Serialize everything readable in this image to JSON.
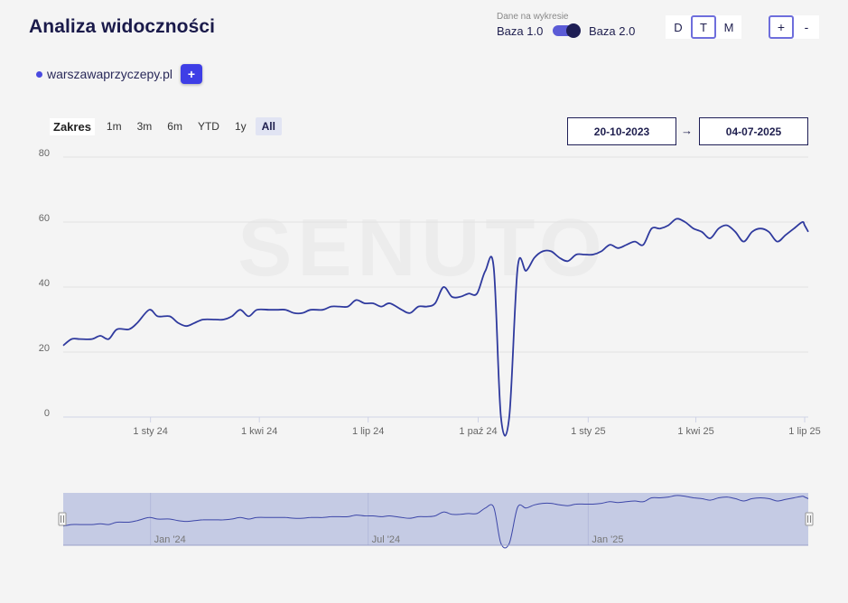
{
  "header": {
    "title": "Analiza widoczności",
    "data_caption": "Dane na wykresie",
    "base_left": "Baza 1.0",
    "base_right": "Baza 2.0",
    "base_selected": "Baza 2.0",
    "periods": [
      "D",
      "T",
      "M"
    ],
    "period_selected": "T",
    "zoom_in": "+",
    "zoom_out": "-"
  },
  "domains": {
    "items": [
      {
        "name": "warszawaprzyczepy.pl",
        "color": "#4a4ae0"
      }
    ],
    "add_label": "+"
  },
  "range": {
    "label": "Zakres",
    "buttons": [
      "1m",
      "3m",
      "6m",
      "YTD",
      "1y",
      "All"
    ],
    "selected": "All",
    "from": "20-10-2023",
    "arrow": "→",
    "to": "04-07-2025"
  },
  "watermark": "SENUTO",
  "chart_data": {
    "type": "line",
    "y_ticks": [
      "80",
      "60",
      "40",
      "20",
      "0"
    ],
    "ylim": [
      0,
      80
    ],
    "x_ticks": [
      {
        "label": "1 sty 24",
        "date": "2024-01-01"
      },
      {
        "label": "1 kwi 24",
        "date": "2024-04-01"
      },
      {
        "label": "1 lip 24",
        "date": "2024-07-01"
      },
      {
        "label": "1 paź 24",
        "date": "2024-10-01"
      },
      {
        "label": "1 sty 25",
        "date": "2025-01-01"
      },
      {
        "label": "1 kwi 25",
        "date": "2025-04-01"
      },
      {
        "label": "1 lip 25",
        "date": "2025-07-01"
      }
    ],
    "xlim": [
      "2023-10-20",
      "2025-07-04"
    ],
    "series": [
      {
        "name": "warszawaprzyczepy.pl",
        "color": "#2f3a9e",
        "points": [
          [
            "2023-10-20",
            22
          ],
          [
            "2023-10-27",
            24
          ],
          [
            "2023-11-03",
            24
          ],
          [
            "2023-11-13",
            24
          ],
          [
            "2023-11-20",
            25
          ],
          [
            "2023-11-27",
            24
          ],
          [
            "2023-12-04",
            27
          ],
          [
            "2023-12-14",
            27
          ],
          [
            "2023-12-21",
            29
          ],
          [
            "2023-12-31",
            33
          ],
          [
            "2024-01-07",
            31
          ],
          [
            "2024-01-17",
            31
          ],
          [
            "2024-01-24",
            29
          ],
          [
            "2024-01-31",
            28
          ],
          [
            "2024-02-07",
            29
          ],
          [
            "2024-02-14",
            30
          ],
          [
            "2024-02-24",
            30
          ],
          [
            "2024-03-02",
            30
          ],
          [
            "2024-03-09",
            31
          ],
          [
            "2024-03-16",
            33
          ],
          [
            "2024-03-23",
            31
          ],
          [
            "2024-03-30",
            33
          ],
          [
            "2024-04-09",
            33
          ],
          [
            "2024-04-16",
            33
          ],
          [
            "2024-04-23",
            33
          ],
          [
            "2024-04-30",
            32
          ],
          [
            "2024-05-07",
            32
          ],
          [
            "2024-05-14",
            33
          ],
          [
            "2024-05-24",
            33
          ],
          [
            "2024-05-31",
            34
          ],
          [
            "2024-06-07",
            34
          ],
          [
            "2024-06-14",
            34
          ],
          [
            "2024-06-21",
            36
          ],
          [
            "2024-06-28",
            35
          ],
          [
            "2024-07-05",
            35
          ],
          [
            "2024-07-12",
            34
          ],
          [
            "2024-07-19",
            35
          ],
          [
            "2024-07-29",
            33
          ],
          [
            "2024-08-05",
            32
          ],
          [
            "2024-08-12",
            34
          ],
          [
            "2024-08-19",
            34
          ],
          [
            "2024-08-26",
            35
          ],
          [
            "2024-09-02",
            40
          ],
          [
            "2024-09-09",
            37
          ],
          [
            "2024-09-16",
            37
          ],
          [
            "2024-09-23",
            38
          ],
          [
            "2024-09-30",
            38
          ],
          [
            "2024-10-07",
            45
          ],
          [
            "2024-10-14",
            46
          ],
          [
            "2024-10-20",
            0
          ],
          [
            "2024-10-27",
            0
          ],
          [
            "2024-11-03",
            46
          ],
          [
            "2024-11-10",
            45
          ],
          [
            "2024-11-17",
            49
          ],
          [
            "2024-11-24",
            51
          ],
          [
            "2024-12-01",
            51
          ],
          [
            "2024-12-08",
            49
          ],
          [
            "2024-12-15",
            48
          ],
          [
            "2024-12-22",
            50
          ],
          [
            "2024-12-29",
            50
          ],
          [
            "2025-01-05",
            50
          ],
          [
            "2025-01-12",
            51
          ],
          [
            "2025-01-19",
            53
          ],
          [
            "2025-01-26",
            52
          ],
          [
            "2025-02-02",
            53
          ],
          [
            "2025-02-09",
            54
          ],
          [
            "2025-02-16",
            53
          ],
          [
            "2025-02-23",
            58
          ],
          [
            "2025-03-02",
            58
          ],
          [
            "2025-03-09",
            59
          ],
          [
            "2025-03-16",
            61
          ],
          [
            "2025-03-23",
            60
          ],
          [
            "2025-03-30",
            58
          ],
          [
            "2025-04-06",
            57
          ],
          [
            "2025-04-13",
            55
          ],
          [
            "2025-04-20",
            58
          ],
          [
            "2025-04-27",
            59
          ],
          [
            "2025-05-04",
            57
          ],
          [
            "2025-05-11",
            54
          ],
          [
            "2025-05-18",
            57
          ],
          [
            "2025-05-25",
            58
          ],
          [
            "2025-06-01",
            57
          ],
          [
            "2025-06-08",
            54
          ],
          [
            "2025-06-15",
            56
          ],
          [
            "2025-06-22",
            58
          ],
          [
            "2025-06-29",
            60
          ],
          [
            "2025-07-01",
            59
          ],
          [
            "2025-07-04",
            57
          ]
        ]
      }
    ],
    "navigator": {
      "ticks": [
        {
          "label": "Jan '24",
          "date": "2024-01-01"
        },
        {
          "label": "Jul '24",
          "date": "2024-07-01"
        },
        {
          "label": "Jan '25",
          "date": "2025-01-01"
        }
      ],
      "handle_glyph": "|||"
    },
    "grid": true,
    "legend": "top-left"
  }
}
